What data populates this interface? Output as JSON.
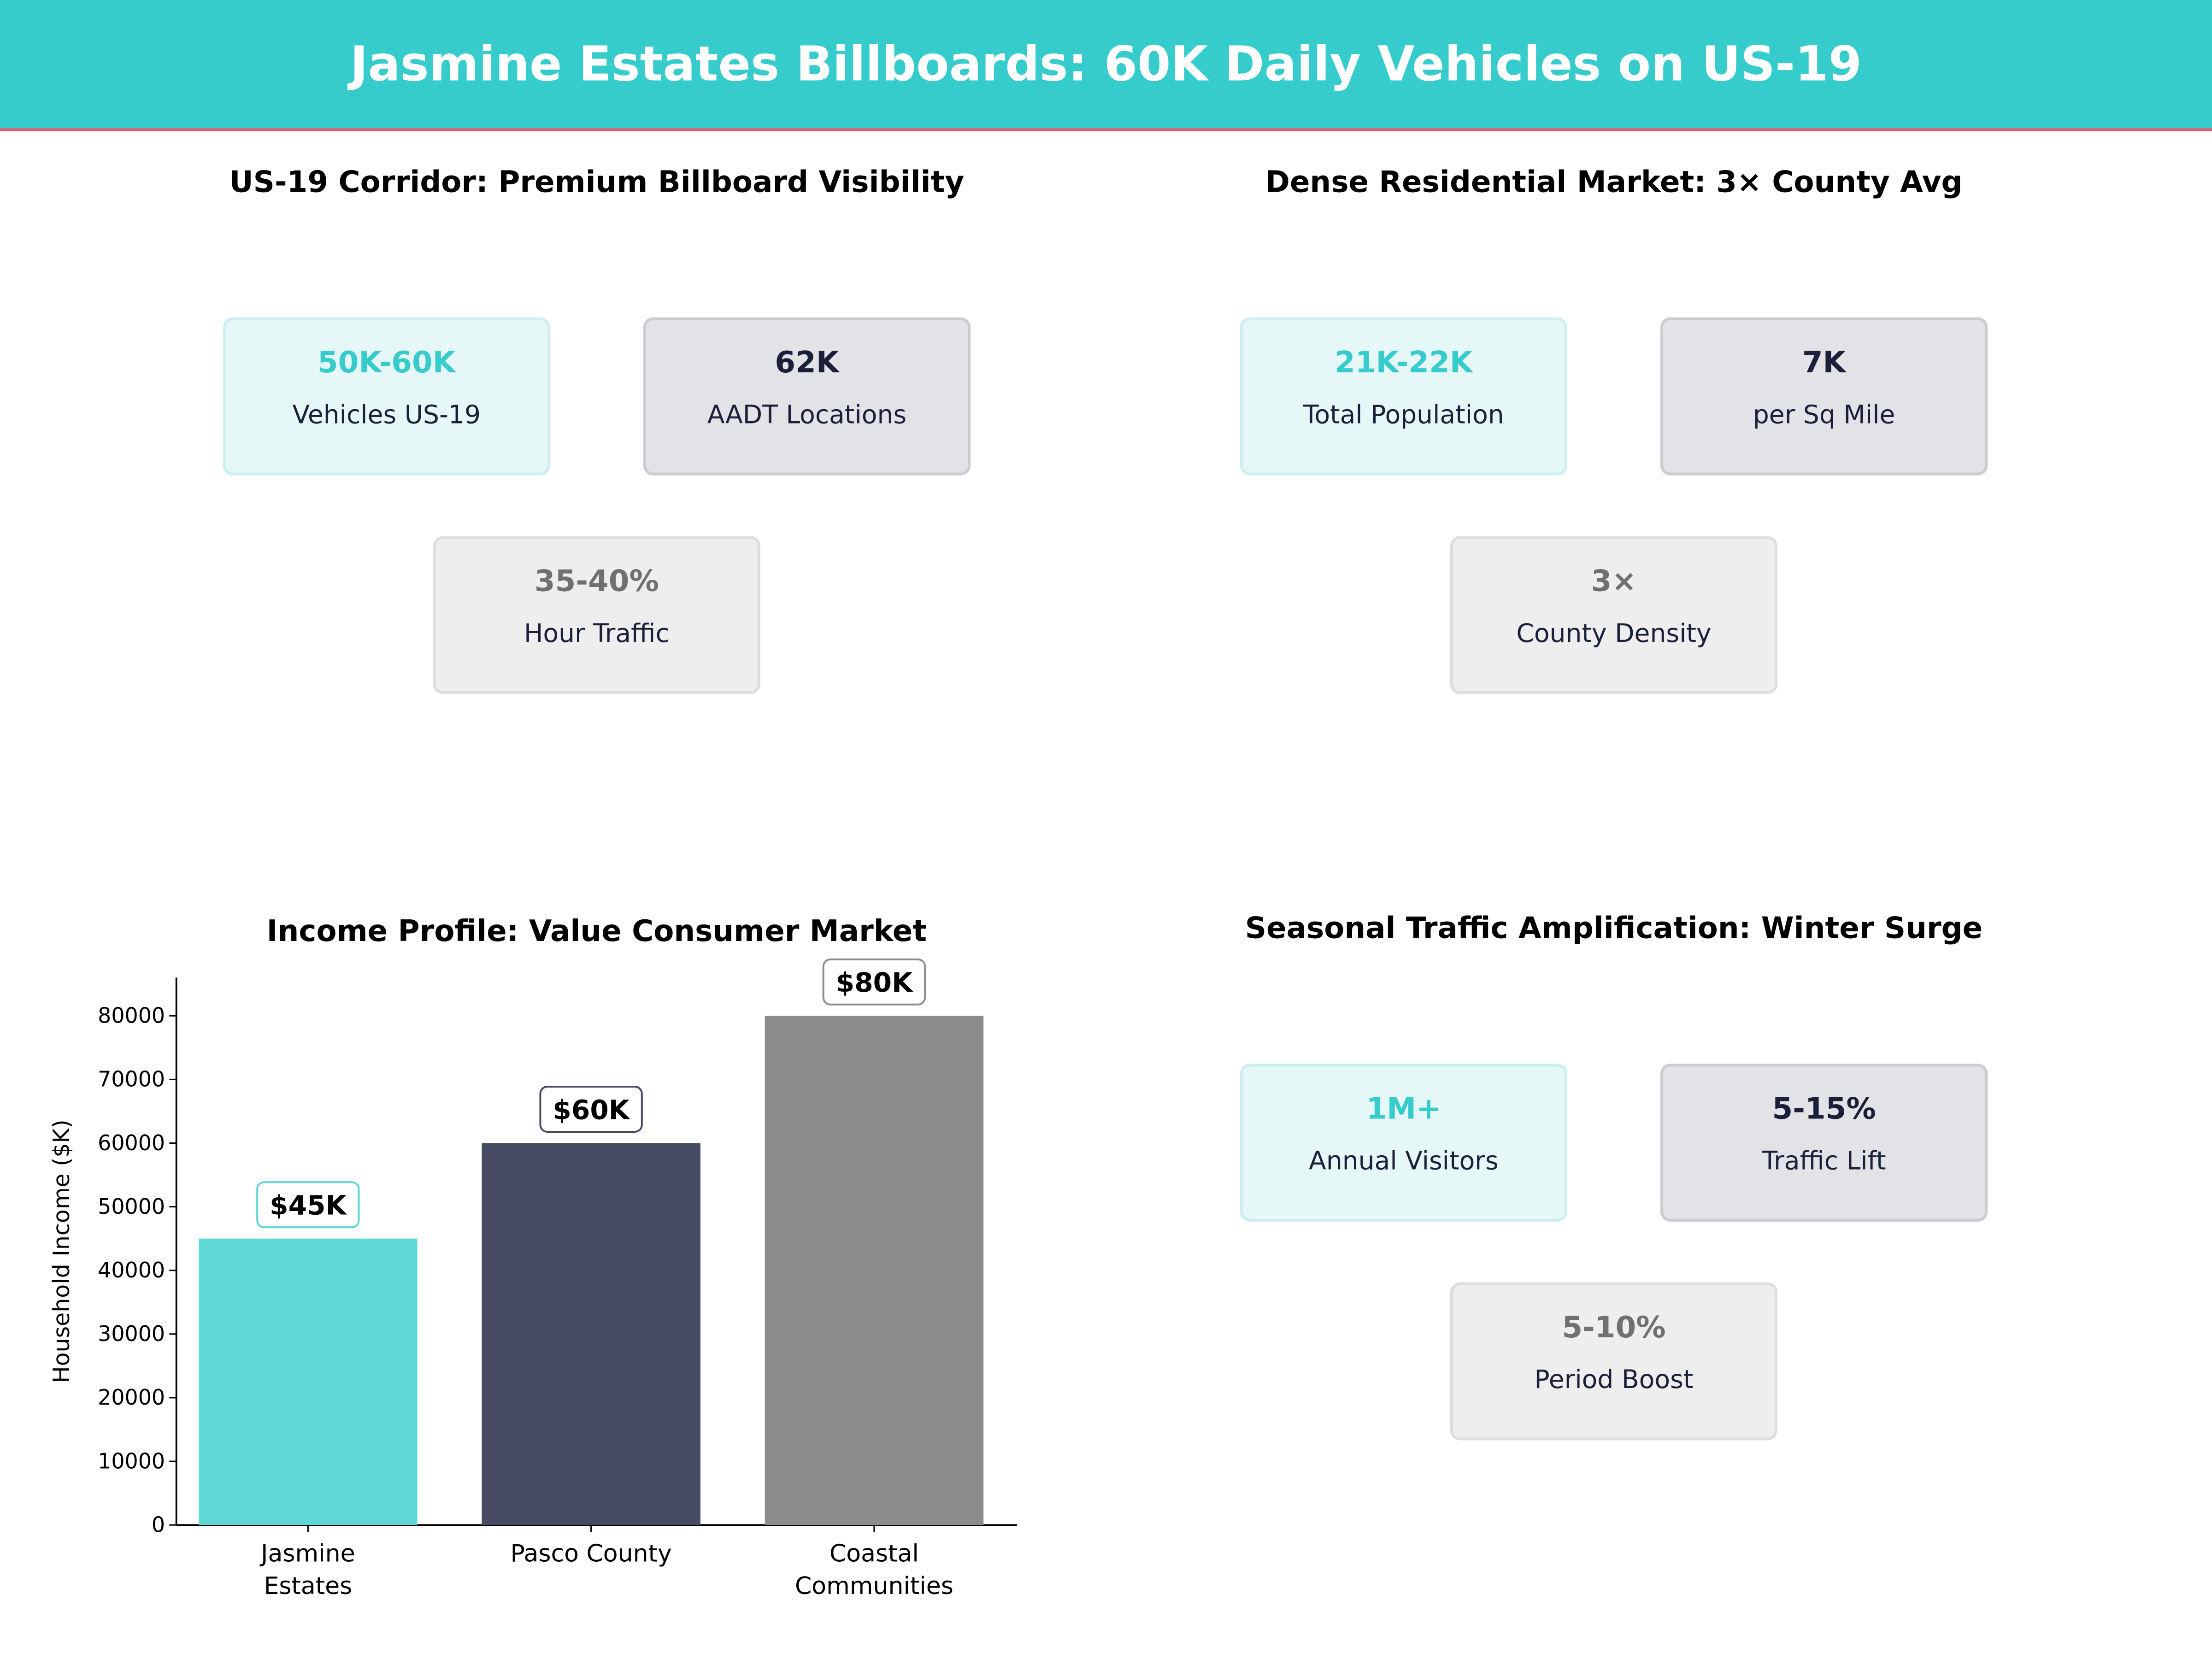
{
  "header": {
    "title": "Jasmine Estates Billboards: 60K Daily Vehicles on US-19"
  },
  "panels": [
    {
      "title": "US-19 Corridor: Premium Billboard Visibility",
      "cards": [
        {
          "value": "50K-60K",
          "label": "Vehicles US-19",
          "style": "teal"
        },
        {
          "value": "62K",
          "label": "AADT Locations",
          "style": "navy"
        },
        {
          "value": "35-40%",
          "label": "Hour Traffic",
          "style": "gray"
        }
      ]
    },
    {
      "title": "Dense Residential Market: 3× County Avg",
      "cards": [
        {
          "value": "21K-22K",
          "label": "Total Population",
          "style": "teal"
        },
        {
          "value": "7K",
          "label": "per Sq Mile",
          "style": "navy"
        },
        {
          "value": "3×",
          "label": "County Density",
          "style": "gray"
        }
      ]
    },
    {
      "title": "Seasonal Traffic Amplification: Winter Surge",
      "cards": [
        {
          "value": "1M+",
          "label": "Annual Visitors",
          "style": "teal"
        },
        {
          "value": "5-15%",
          "label": "Traffic Lift",
          "style": "navy"
        },
        {
          "value": "5-10%",
          "label": "Period Boost",
          "style": "gray"
        }
      ]
    }
  ],
  "colors": {
    "teal": "#36CCCC",
    "navy": "#1a1f3a",
    "gray": "#707070",
    "accent_line": "#E8566A"
  },
  "chart_data": {
    "type": "bar",
    "title": "Income Profile: Value Consumer Market",
    "categories": [
      "Jasmine\nEstates",
      "Pasco County",
      "Coastal\nCommunities"
    ],
    "values": [
      45000,
      60000,
      80000
    ],
    "data_labels": [
      "$45K",
      "$60K",
      "$80K"
    ],
    "bar_colors": [
      "#5DD8D4",
      "#464B61",
      "#8C8C8C"
    ],
    "label_border_colors": [
      "#5DD8D4",
      "#464B61",
      "#8C8C8C"
    ],
    "xlabel": "",
    "ylabel": "Household Income ($K)",
    "ylim": [
      0,
      86000
    ],
    "yticks": [
      0,
      10000,
      20000,
      30000,
      40000,
      50000,
      60000,
      70000,
      80000
    ],
    "grid": false
  }
}
